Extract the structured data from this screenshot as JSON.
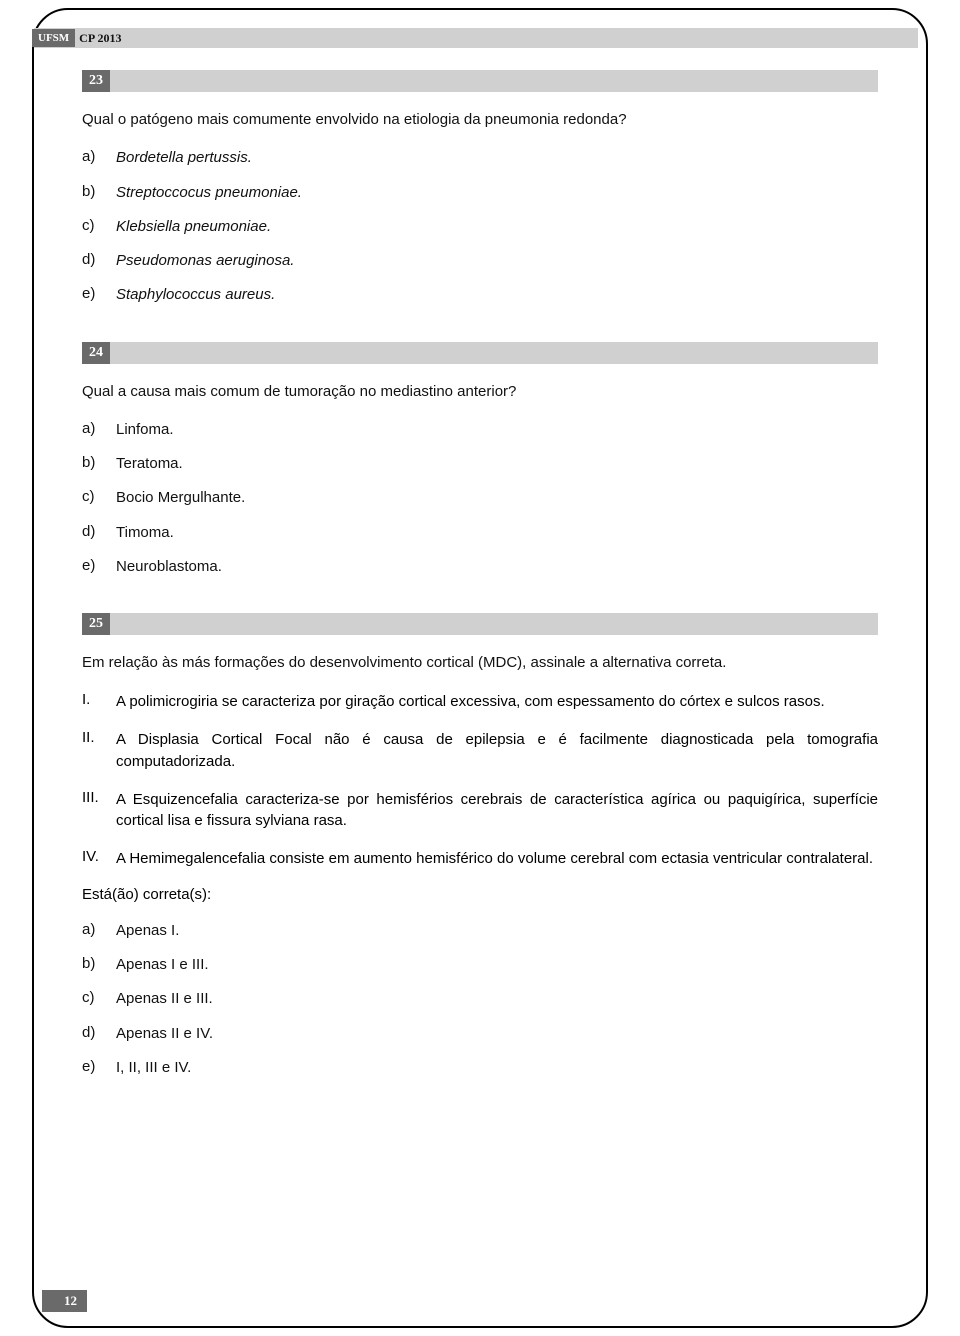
{
  "header": {
    "institution": "UFSM",
    "exam": "CP 2013"
  },
  "page_number": "12",
  "questions": [
    {
      "number": "23",
      "stem": "Qual o patógeno mais comumente envolvido na etiologia da pneumonia redonda?",
      "options_italic": true,
      "options": [
        {
          "letter": "a)",
          "text": "Bordetella pertussis."
        },
        {
          "letter": "b)",
          "text": "Streptoccocus pneumoniae."
        },
        {
          "letter": "c)",
          "text": "Klebsiella pneumoniae."
        },
        {
          "letter": "d)",
          "text": "Pseudomonas aeruginosa."
        },
        {
          "letter": "e)",
          "text": "Staphylococcus aureus."
        }
      ]
    },
    {
      "number": "24",
      "stem": "Qual a causa mais comum de tumoração no mediastino anterior?",
      "options_italic": false,
      "options": [
        {
          "letter": "a)",
          "text": "Linfoma."
        },
        {
          "letter": "b)",
          "text": "Teratoma."
        },
        {
          "letter": "c)",
          "text": "Bocio Mergulhante."
        },
        {
          "letter": "d)",
          "text": "Timoma."
        },
        {
          "letter": "e)",
          "text": "Neuroblastoma."
        }
      ]
    },
    {
      "number": "25",
      "stem": "Em relação às más formações do desenvolvimento cortical (MDC), assinale a alternativa correta.",
      "statements": [
        {
          "num": "I.",
          "text": "A polimicrogiria se caracteriza por giração cortical excessiva, com espessamento do córtex e sulcos rasos."
        },
        {
          "num": "II.",
          "text": "A Displasia Cortical Focal não é causa de epilepsia e é facilmente diagnosticada pela tomografia computadorizada."
        },
        {
          "num": "III.",
          "text": "A Esquizencefalia caracteriza-se por hemisférios cerebrais de característica agírica ou paquigírica, superfície cortical lisa e fissura sylviana rasa."
        },
        {
          "num": "IV.",
          "text": "A Hemimegalencefalia consiste em aumento hemisférico do volume cerebral com ectasia ventricular contralateral."
        }
      ],
      "sub_stem": "Está(ão) correta(s):",
      "options_italic": false,
      "options": [
        {
          "letter": "a)",
          "text": "Apenas I."
        },
        {
          "letter": "b)",
          "text": "Apenas I e III."
        },
        {
          "letter": "c)",
          "text": "Apenas II e III."
        },
        {
          "letter": "d)",
          "text": "Apenas II e IV."
        },
        {
          "letter": "e)",
          "text": "I, II, III e IV."
        }
      ]
    }
  ]
}
